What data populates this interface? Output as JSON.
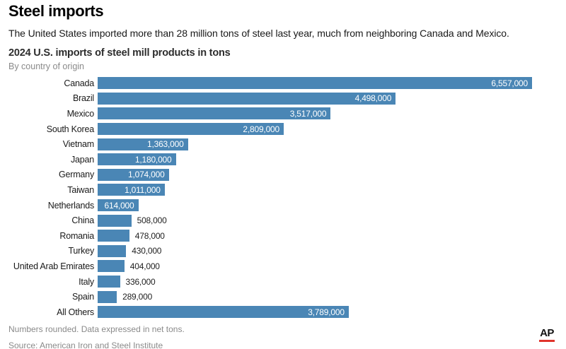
{
  "header": {
    "title": "Steel imports",
    "subtitle": "The United States imported more than 28 million tons of steel last year, much from neighboring Canada and Mexico."
  },
  "chart_data": {
    "type": "bar",
    "orientation": "horizontal",
    "title": "2024 U.S. imports of steel mill products in tons",
    "subtitle": "By country of origin",
    "unit": "net tons",
    "xlim": [
      0,
      6557000
    ],
    "grid": false,
    "legend": false,
    "categories": [
      "Canada",
      "Brazil",
      "Mexico",
      "South Korea",
      "Vietnam",
      "Japan",
      "Germany",
      "Taiwan",
      "Netherlands",
      "China",
      "Romania",
      "Turkey",
      "United Arab Emirates",
      "Italy",
      "Spain",
      "All Others"
    ],
    "values": [
      6557000,
      4498000,
      3517000,
      2809000,
      1363000,
      1180000,
      1074000,
      1011000,
      614000,
      508000,
      478000,
      430000,
      404000,
      336000,
      289000,
      3789000
    ],
    "value_labels": [
      "6,557,000",
      "4,498,000",
      "3,517,000",
      "2,809,000",
      "1,363,000",
      "1,180,000",
      "1,074,000",
      "1,011,000",
      "614,000",
      "508,000",
      "478,000",
      "430,000",
      "404,000",
      "336,000",
      "289,000",
      "3,789,000"
    ]
  },
  "footer": {
    "note": "Numbers rounded. Data expressed in net tons.",
    "source": "Source: American Iron and Steel Institute",
    "logo_text": "AP"
  },
  "colors": {
    "bar": "#4a86b5",
    "ap_red": "#e0342c"
  }
}
